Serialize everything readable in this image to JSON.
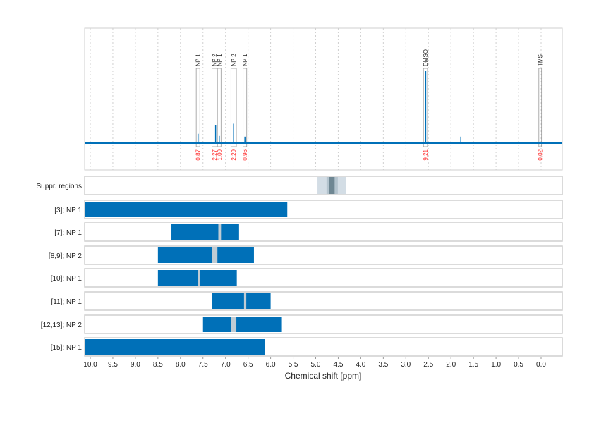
{
  "chart_data": {
    "type": "line",
    "xlabel": "Chemical shift [ppm]",
    "xlim": [
      10.125,
      -0.47
    ],
    "x_ticks": [
      "10.0",
      "9.5",
      "9.0",
      "8.5",
      "8.0",
      "7.5",
      "7.0",
      "6.5",
      "6.0",
      "5.5",
      "5.0",
      "4.5",
      "4.0",
      "3.5",
      "3.0",
      "2.5",
      "2.0",
      "1.5",
      "1.0",
      "0.5",
      "0.0"
    ],
    "grid": true,
    "colors": {
      "spectrum": "#0070b8",
      "bar": "#0070b8",
      "overlap": "#c0ccd4",
      "integral": "#ff2a2a",
      "panel_border": "#cfcfcf"
    },
    "spectrum_peaks": [
      {
        "ppm": 7.61,
        "height": 13
      },
      {
        "ppm": 7.22,
        "height": 25
      },
      {
        "ppm": 7.14,
        "height": 10
      },
      {
        "ppm": 6.82,
        "height": 27
      },
      {
        "ppm": 6.57,
        "height": 9
      },
      {
        "ppm": 2.56,
        "height": 100
      },
      {
        "ppm": 1.78,
        "height": 9
      }
    ],
    "annotations": [
      {
        "label": "NP 1",
        "from": 7.65,
        "to": 7.57,
        "integral": "0.87"
      },
      {
        "label": "NP 2",
        "from": 7.3,
        "to": 7.19,
        "integral": "2.27"
      },
      {
        "label": "NP 1",
        "from": 7.18,
        "to": 7.1,
        "integral": "1.00"
      },
      {
        "label": "NP 2",
        "from": 6.88,
        "to": 6.76,
        "integral": "2.29"
      },
      {
        "label": "NP 1",
        "from": 6.61,
        "to": 6.53,
        "integral": "0.96"
      },
      {
        "label": "DMSO",
        "from": 2.61,
        "to": 2.52,
        "integral": "9.21"
      },
      {
        "label": "TMS",
        "from": 0.05,
        "to": -0.01,
        "integral": "0.02"
      }
    ],
    "suppressed_regions": {
      "label": "Suppr. regions",
      "outer": [
        4.96,
        4.32
      ],
      "inner": [
        4.76,
        4.51
      ],
      "core": [
        4.7,
        4.58
      ]
    },
    "rows": [
      {
        "label": "[3]; NP 1",
        "range": [
          10.125,
          5.63
        ],
        "overlap": null
      },
      {
        "label": "[7]; NP 1",
        "range": [
          8.2,
          6.7
        ],
        "overlap": [
          7.16,
          7.1
        ]
      },
      {
        "label": "[8,9]; NP 2",
        "range": [
          8.5,
          6.37
        ],
        "overlap": [
          7.3,
          7.18
        ]
      },
      {
        "label": "[10]; NP 1",
        "range": [
          8.5,
          6.75
        ],
        "overlap": [
          7.62,
          7.56
        ]
      },
      {
        "label": "[11]; NP 1",
        "range": [
          7.3,
          6.0
        ],
        "overlap": [
          6.59,
          6.54
        ]
      },
      {
        "label": "[12,13]; NP 2",
        "range": [
          7.5,
          5.75
        ],
        "overlap": [
          6.88,
          6.76
        ]
      },
      {
        "label": "[15]; NP 1",
        "range": [
          10.125,
          6.12
        ],
        "overlap": null
      }
    ]
  }
}
